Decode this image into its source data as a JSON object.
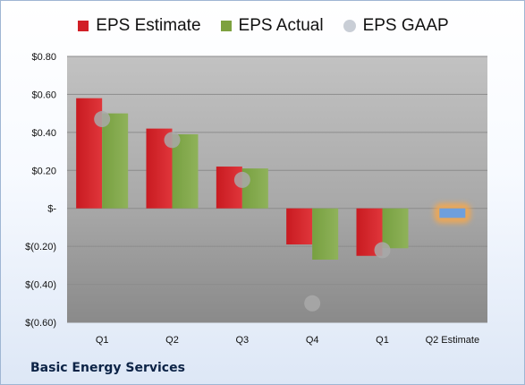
{
  "chart_data": {
    "type": "bar",
    "categories": [
      "Q1",
      "Q2",
      "Q3",
      "Q4",
      "Q1",
      "Q2 Estimate"
    ],
    "series": [
      {
        "name": "EPS Estimate",
        "values": [
          0.58,
          0.42,
          0.22,
          -0.19,
          -0.25,
          null
        ]
      },
      {
        "name": "EPS Actual",
        "values": [
          0.5,
          0.39,
          0.21,
          -0.27,
          -0.21,
          null
        ]
      },
      {
        "name": "EPS GAAP",
        "values": [
          0.47,
          0.36,
          0.15,
          -0.5,
          -0.22,
          null
        ]
      }
    ],
    "next_estimate": {
      "category": "Q2 Estimate",
      "value": -0.05
    },
    "yticks": [
      {
        "value": 0.8,
        "label": "$0.80"
      },
      {
        "value": 0.6,
        "label": "$0.60"
      },
      {
        "value": 0.4,
        "label": "$0.40"
      },
      {
        "value": 0.2,
        "label": "$0.20"
      },
      {
        "value": 0.0,
        "label": "$-"
      },
      {
        "value": -0.2,
        "label": "$(0.20)"
      },
      {
        "value": -0.4,
        "label": "$(0.40)"
      },
      {
        "value": -0.6,
        "label": "$(0.60)"
      }
    ],
    "ylim": [
      -0.6,
      0.8
    ],
    "grid": true,
    "legend_position": "top",
    "colors": {
      "estimate": "#d11f26",
      "actual": "#7da13f",
      "gaap": "#a9a9a9",
      "next_estimate": "#6f9fdc",
      "next_estimate_glow": "#f5a74d"
    },
    "footer": "Basic Energy Services"
  }
}
